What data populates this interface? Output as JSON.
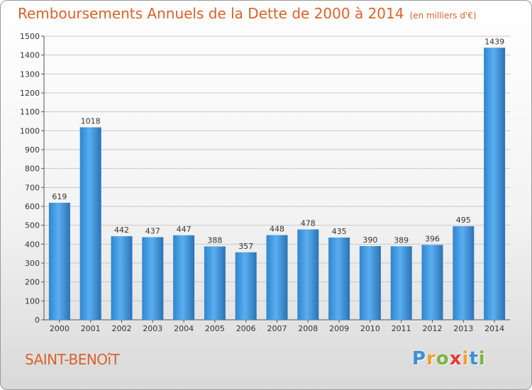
{
  "header": {
    "title": "Remboursements Annuels de la Dette de 2000 à 2014",
    "unit": "(en milliers d'€)"
  },
  "footer": {
    "commune": "SAINT-BENOîT",
    "brand_letters": [
      "P",
      "r",
      "o",
      "x",
      "i",
      "t",
      "i"
    ],
    "brand_colors": [
      "#3d8fd6",
      "#f0a030",
      "#7cb342",
      "#e53935",
      "#f0a030",
      "#3d8fd6",
      "#7cb342"
    ]
  },
  "chart_data": {
    "type": "bar",
    "title": "Remboursements Annuels de la Dette de 2000 à 2014",
    "categories": [
      "2000",
      "2001",
      "2002",
      "2003",
      "2004",
      "2005",
      "2006",
      "2007",
      "2008",
      "2009",
      "2010",
      "2011",
      "2012",
      "2013",
      "2014"
    ],
    "values": [
      619,
      1018,
      442,
      437,
      447,
      388,
      357,
      448,
      478,
      435,
      390,
      389,
      396,
      495,
      1439
    ],
    "ylim": [
      0,
      1500
    ],
    "yticks": [
      0,
      100,
      200,
      300,
      400,
      500,
      600,
      700,
      800,
      900,
      1000,
      1100,
      1200,
      1300,
      1400,
      1500
    ],
    "grid": true,
    "bar_color": "#3d95dc",
    "bar_color_dark": "#2a73b5"
  }
}
